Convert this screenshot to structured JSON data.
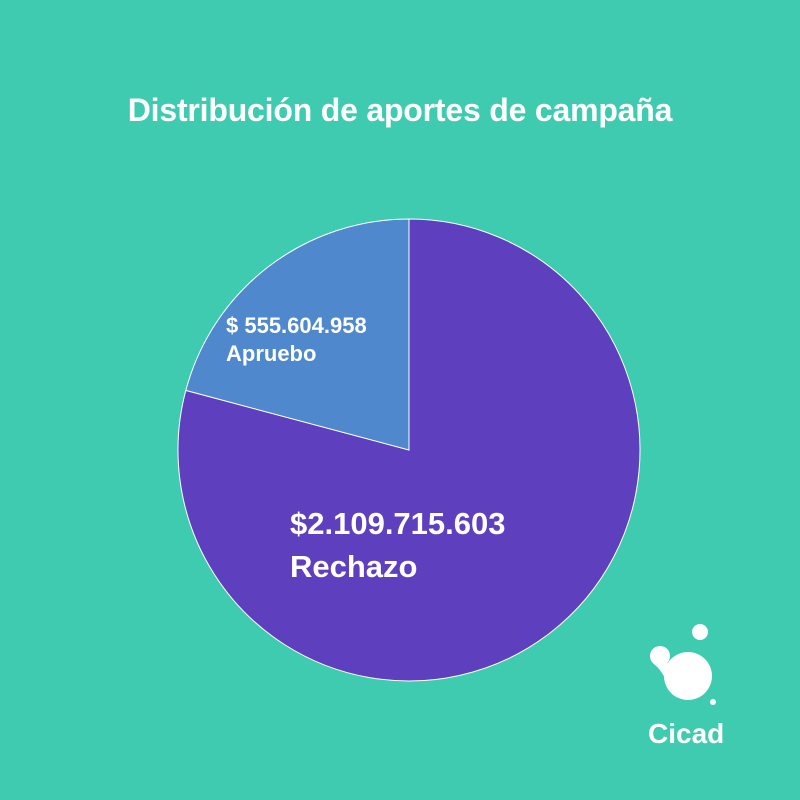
{
  "title": "Distribución de aportes de campaña",
  "chart_data": {
    "type": "pie",
    "title": "Distribución de aportes de campaña",
    "start_angle_deg": 0,
    "slices": [
      {
        "label": "Rechazo",
        "value_text": "$2.109.715.603",
        "value": 2109715603,
        "color": "#5e3fbe"
      },
      {
        "label": "Apruebo",
        "value_text": "$ 555.604.958",
        "value": 555604958,
        "color": "#4f88cd"
      }
    ]
  },
  "colors": {
    "background": "#3ecbb0",
    "text": "#ffffff",
    "slice_border": "#ffffff"
  },
  "logo": {
    "text": "Cicad",
    "icon": "cicad-logo-icon"
  }
}
